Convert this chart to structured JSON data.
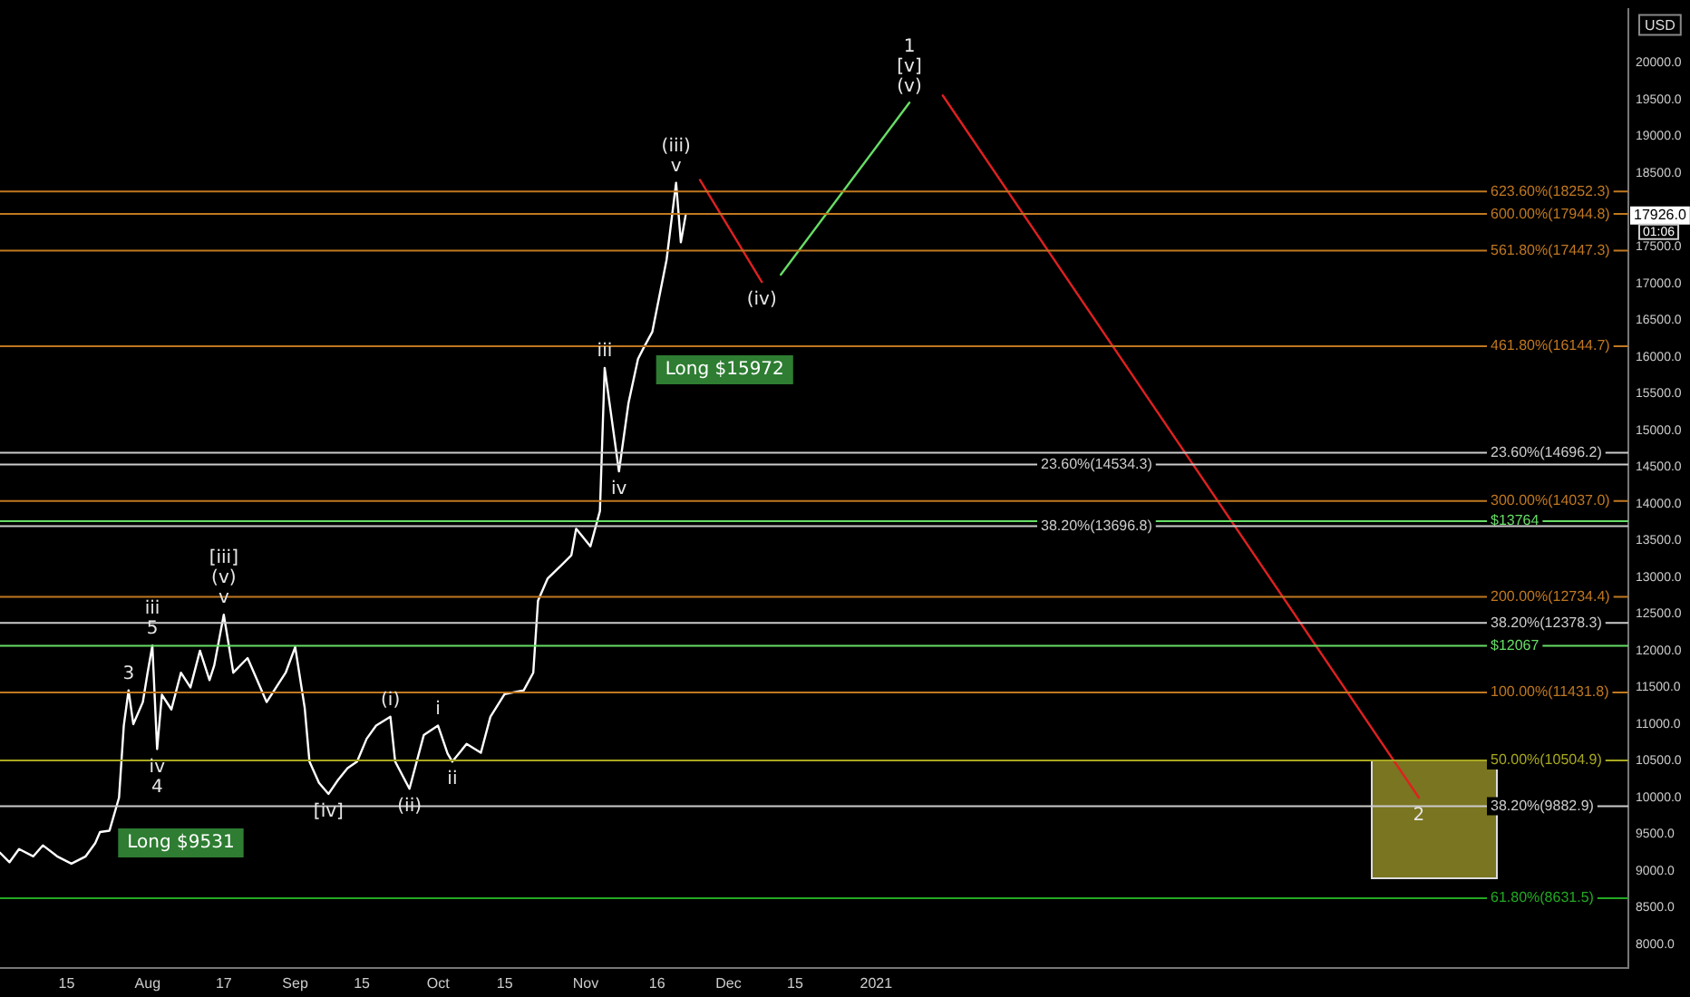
{
  "chart_data": {
    "type": "line",
    "ylabel": "USD",
    "xlim": [
      "2020-07-01",
      "2021-06-08"
    ],
    "xticks": [
      {
        "value": "2020-07-15",
        "label": "15"
      },
      {
        "value": "2020-08-01",
        "label": "Aug"
      },
      {
        "value": "2020-08-17",
        "label": "17"
      },
      {
        "value": "2020-09-01",
        "label": "Sep"
      },
      {
        "value": "2020-09-15",
        "label": "15"
      },
      {
        "value": "2020-10-01",
        "label": "Oct"
      },
      {
        "value": "2020-10-15",
        "label": "15"
      },
      {
        "value": "2020-11-01",
        "label": "Nov"
      },
      {
        "value": "2020-11-16",
        "label": "16"
      },
      {
        "value": "2020-12-01",
        "label": "Dec"
      },
      {
        "value": "2020-12-15",
        "label": "15"
      },
      {
        "value": "2021-01-01",
        "label": "2021"
      }
    ],
    "ylim": [
      7680,
      20730
    ],
    "yticks": [
      {
        "value": 8000,
        "label": "8000.0"
      },
      {
        "value": 8500,
        "label": "8500.0"
      },
      {
        "value": 9000,
        "label": "9000.0"
      },
      {
        "value": 9500,
        "label": "9500.0"
      },
      {
        "value": 10000,
        "label": "10000.0"
      },
      {
        "value": 10500,
        "label": "10500.0"
      },
      {
        "value": 11000,
        "label": "11000.0"
      },
      {
        "value": 11500,
        "label": "11500.0"
      },
      {
        "value": 12000,
        "label": "12000.0"
      },
      {
        "value": 12500,
        "label": "12500.0"
      },
      {
        "value": 13000,
        "label": "13000.0"
      },
      {
        "value": 13500,
        "label": "13500.0"
      },
      {
        "value": 14000,
        "label": "14000.0"
      },
      {
        "value": 14500,
        "label": "14500.0"
      },
      {
        "value": 15000,
        "label": "15000.0"
      },
      {
        "value": 15500,
        "label": "15500.0"
      },
      {
        "value": 16000,
        "label": "16000.0"
      },
      {
        "value": 16500,
        "label": "16500.0"
      },
      {
        "value": 17000,
        "label": "17000.0"
      },
      {
        "value": 17500,
        "label": "17500.0"
      },
      {
        "value": 18500,
        "label": "18500.0"
      },
      {
        "value": 19000,
        "label": "19000.0"
      },
      {
        "value": 19500,
        "label": "19500.0"
      },
      {
        "value": 20000,
        "label": "20000.0"
      }
    ],
    "grid": false,
    "legend": false,
    "marker": "none",
    "series": [
      {
        "color": "#ffffff",
        "x": [
          "2020-07-01",
          "2020-07-03",
          "2020-07-05",
          "2020-07-08",
          "2020-07-10",
          "2020-07-13",
          "2020-07-16",
          "2020-07-19",
          "2020-07-21",
          "2020-07-22",
          "2020-07-24",
          "2020-07-26",
          "2020-07-27",
          "2020-07-28",
          "2020-07-29",
          "2020-07-31",
          "2020-08-01",
          "2020-08-02",
          "2020-08-03",
          "2020-08-04",
          "2020-08-06",
          "2020-08-08",
          "2020-08-10",
          "2020-08-12",
          "2020-08-14",
          "2020-08-15",
          "2020-08-17",
          "2020-08-19",
          "2020-08-22",
          "2020-08-24",
          "2020-08-26",
          "2020-08-28",
          "2020-08-30",
          "2020-09-01",
          "2020-09-03",
          "2020-09-04",
          "2020-09-06",
          "2020-09-08",
          "2020-09-10",
          "2020-09-12",
          "2020-09-14",
          "2020-09-16",
          "2020-09-18",
          "2020-09-21",
          "2020-09-22",
          "2020-09-25",
          "2020-09-28",
          "2020-10-01",
          "2020-10-03",
          "2020-10-04",
          "2020-10-07",
          "2020-10-10",
          "2020-10-12",
          "2020-10-15",
          "2020-10-19",
          "2020-10-21",
          "2020-10-22",
          "2020-10-24",
          "2020-10-27",
          "2020-10-29",
          "2020-10-30",
          "2020-11-02",
          "2020-11-04",
          "2020-11-05",
          "2020-11-08",
          "2020-11-10",
          "2020-11-12",
          "2020-11-13",
          "2020-11-15",
          "2020-11-18",
          "2020-11-20",
          "2020-11-21",
          "2020-11-22"
        ],
        "values": [
          9250,
          9120,
          9300,
          9200,
          9350,
          9200,
          9100,
          9200,
          9380,
          9531,
          9550,
          10000,
          10980,
          11460,
          11000,
          11300,
          11700,
          12070,
          10660,
          11400,
          11200,
          11700,
          11500,
          12000,
          11600,
          11800,
          12490,
          11700,
          11900,
          11600,
          11300,
          11500,
          11700,
          12050,
          11220,
          10490,
          10200,
          10050,
          10240,
          10400,
          10490,
          10800,
          10980,
          11100,
          10490,
          10120,
          10850,
          10980,
          10600,
          10490,
          10730,
          10610,
          11100,
          11410,
          11460,
          11700,
          12680,
          12980,
          13170,
          13300,
          13660,
          13420,
          13900,
          15850,
          14440,
          15370,
          15972,
          16100,
          16340,
          17320,
          18370,
          17560,
          17926
        ]
      },
      {
        "color": "#e02020",
        "x": [
          "2020-11-25",
          "2020-12-08"
        ],
        "values": [
          18410,
          17020
        ]
      },
      {
        "color": "#66dd66",
        "x": [
          "2020-12-12",
          "2021-01-08"
        ],
        "values": [
          17120,
          19460
        ]
      },
      {
        "color": "#e02020",
        "x": [
          "2021-01-15",
          "2021-04-25"
        ],
        "values": [
          19560,
          10000
        ]
      }
    ],
    "ref_lines": [
      {
        "axis": "y",
        "value": 14696.2,
        "label": "23.60%(14696.2)",
        "color": "#cccccc"
      },
      {
        "axis": "y",
        "value": 12378.3,
        "label": "38.20%(12378.3)",
        "color": "#cccccc"
      },
      {
        "axis": "y",
        "value": 10504.9,
        "label": "50.00%(10504.9)",
        "color": "#a8a820"
      },
      {
        "axis": "y",
        "value": 8631.5,
        "label": "61.80%(8631.5)",
        "color": "#22aa22"
      },
      {
        "axis": "y",
        "value": 13764,
        "label": "$13764",
        "color": "#66dd66"
      },
      {
        "axis": "y",
        "value": 12067,
        "label": "$12067",
        "color": "#66dd66"
      },
      {
        "axis": "y",
        "value": 18252.3,
        "label": "623.60%(18252.3)",
        "color": "#c07820"
      },
      {
        "axis": "y",
        "value": 17944.8,
        "label": "600.00%(17944.8)",
        "color": "#c07820"
      },
      {
        "axis": "y",
        "value": 17447.3,
        "label": "561.80%(17447.3)",
        "color": "#c07820"
      },
      {
        "axis": "y",
        "value": 16144.7,
        "label": "461.80%(16144.7)",
        "color": "#c07820"
      },
      {
        "axis": "y",
        "value": 14037.0,
        "label": "300.00%(14037.0)",
        "color": "#c07820"
      },
      {
        "axis": "y",
        "value": 12734.4,
        "label": "200.00%(12734.4)",
        "color": "#c07820"
      },
      {
        "axis": "y",
        "value": 11431.8,
        "label": "100.00%(11431.8)",
        "color": "#c07820"
      },
      {
        "axis": "y",
        "value": 14534.3,
        "label": "23.60%(14534.3)",
        "color": "#cccccc"
      },
      {
        "axis": "y",
        "value": 13696.8,
        "label": "38.20%(13696.8)",
        "color": "#cccccc"
      },
      {
        "axis": "y",
        "value": 9882.9,
        "label": "38.20%(9882.9)",
        "color": "#cccccc"
      }
    ],
    "annotations": [
      {
        "text": "(v)",
        "x": "2021-01-08",
        "y": 19460
      },
      {
        "text": "[v]",
        "x": "2021-01-08",
        "y": 19460
      },
      {
        "text": "1",
        "x": "2021-01-08",
        "y": 19460
      },
      {
        "text": "v",
        "x": "2020-11-20",
        "y": 18370
      },
      {
        "text": "(iii)",
        "x": "2020-11-20",
        "y": 18370
      },
      {
        "text": "(iv)",
        "x": "2020-12-08",
        "y": 17020
      },
      {
        "text": "Long $15972",
        "x": "2020-11-12",
        "y": 15972
      },
      {
        "text": "iii",
        "x": "2020-11-05",
        "y": 15850
      },
      {
        "text": "iv",
        "x": "2020-11-08",
        "y": 14440
      },
      {
        "text": "v",
        "x": "2020-08-17",
        "y": 12490
      },
      {
        "text": "(v)",
        "x": "2020-08-17",
        "y": 12490
      },
      {
        "text": "[iii]",
        "x": "2020-08-17",
        "y": 12490
      },
      {
        "text": "5",
        "x": "2020-08-02",
        "y": 12070
      },
      {
        "text": "iii",
        "x": "2020-08-02",
        "y": 12070
      },
      {
        "text": "3",
        "x": "2020-07-28",
        "y": 11460
      },
      {
        "text": "iv",
        "x": "2020-08-03",
        "y": 10660
      },
      {
        "text": "4",
        "x": "2020-08-03",
        "y": 10660
      },
      {
        "text": "[iv]",
        "x": "2020-09-08",
        "y": 10050
      },
      {
        "text": "(i)",
        "x": "2020-09-21",
        "y": 11100
      },
      {
        "text": "(ii)",
        "x": "2020-09-25",
        "y": 10120
      },
      {
        "text": "i",
        "x": "2020-10-01",
        "y": 10980
      },
      {
        "text": "ii",
        "x": "2020-10-04",
        "y": 10490
      },
      {
        "text": "2",
        "x": "2021-04-25",
        "y": 10000
      },
      {
        "text": "Long $9531",
        "x": "2020-07-22",
        "y": 9531
      },
      {
        "text": "17926.0",
        "y": 17926
      },
      "01:06"
    ]
  }
}
